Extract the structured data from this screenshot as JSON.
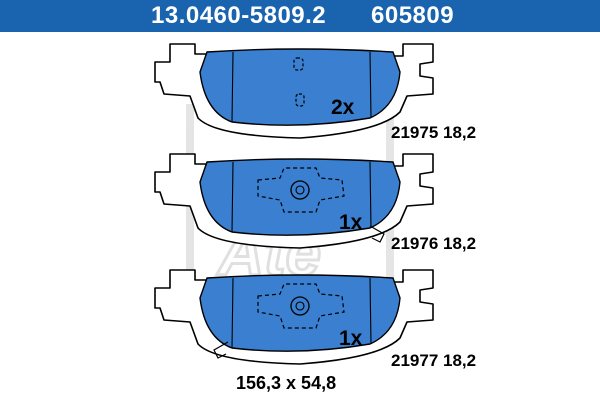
{
  "header": {
    "part_number": "13.0460-5809.2",
    "alt_number": "605809"
  },
  "colors": {
    "header_bg": "#1a63ae",
    "pad_fill": "#3a7fd0",
    "outline": "#000000",
    "watermark": "#d9d9d9"
  },
  "pads": [
    {
      "quantity": "2x",
      "code": "21975 18,2"
    },
    {
      "quantity": "1x",
      "code": "21976 18,2"
    },
    {
      "quantity": "1x",
      "code": "21977 18,2"
    }
  ],
  "dimensions": "156,3 x 54,8",
  "watermark": "Ate"
}
